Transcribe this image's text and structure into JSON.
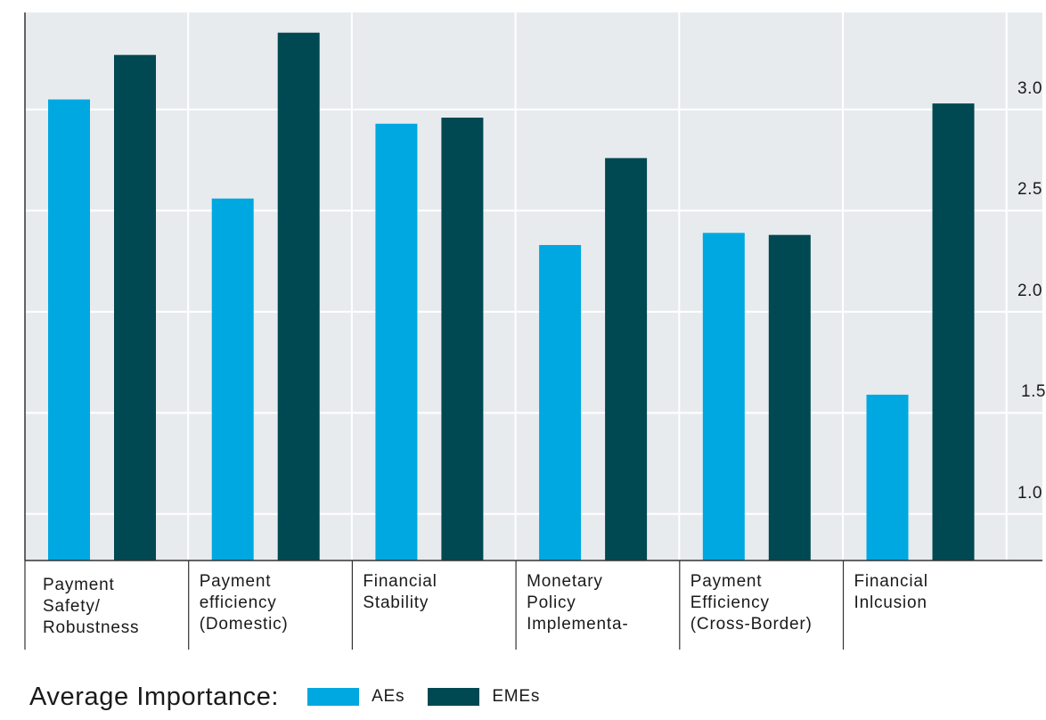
{
  "chart_data": {
    "type": "bar",
    "categories": [
      [
        "Payment",
        "Safety/",
        "Robustness"
      ],
      [
        "Payment",
        "efficiency",
        "(Domestic)"
      ],
      [
        "Financial",
        "Stability"
      ],
      [
        "Monetary",
        "Policy",
        "Implementa-"
      ],
      [
        "Payment",
        "Efficiency",
        "(Cross-Border)"
      ],
      [
        "Financial",
        "Inlcusion"
      ]
    ],
    "series": [
      {
        "name": "AEs",
        "color": "#00a8e1",
        "values": [
          3.05,
          2.56,
          2.93,
          2.33,
          2.39,
          1.59
        ]
      },
      {
        "name": "EMEs",
        "color": "#004852",
        "values": [
          3.27,
          3.38,
          2.96,
          2.76,
          2.38,
          3.03
        ]
      }
    ],
    "yticks": [
      "3.0",
      "2.5",
      "2.0",
      "1.5",
      "1.0"
    ],
    "ytick_values": [
      3.0,
      2.5,
      2.0,
      1.5,
      1.0
    ],
    "ylim": [
      0.77,
      3.48
    ],
    "grid": true,
    "legend_position": "bottom-left",
    "legend_title": "Average Importance:",
    "plot_background": "#e8ebee"
  }
}
